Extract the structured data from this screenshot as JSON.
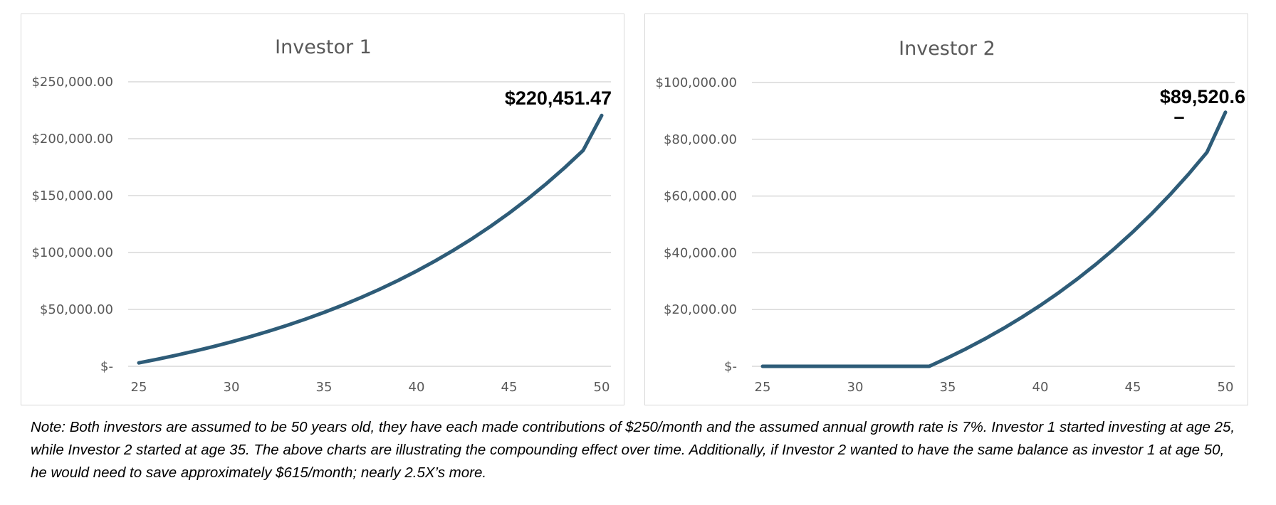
{
  "theme": {
    "line_color": "#2e5c78",
    "grid_color": "#d9d9d9",
    "text_color": "#595959",
    "border_color": "#d9d9d9"
  },
  "chart_data": [
    {
      "type": "line",
      "title": "Investor 1",
      "xlabel": "",
      "ylabel": "",
      "x": [
        25,
        26,
        27,
        28,
        29,
        30,
        31,
        32,
        33,
        34,
        35,
        36,
        37,
        38,
        39,
        40,
        41,
        42,
        43,
        44,
        45,
        46,
        47,
        48,
        49,
        50
      ],
      "series": [
        {
          "name": "Investor 1",
          "values": [
            3000,
            6210,
            9645,
            13320,
            17253,
            21461,
            25963,
            30781,
            35936,
            41452,
            47353,
            53668,
            60425,
            67655,
            75391,
            83668,
            92525,
            102002,
            112142,
            122992,
            134601,
            147023,
            160315,
            174537,
            189754,
            220451.47
          ]
        }
      ],
      "xticks": [
        25,
        30,
        35,
        40,
        45,
        50
      ],
      "xtick_labels": [
        "25",
        "30",
        "35",
        "40",
        "45",
        "50"
      ],
      "yticks": [
        0,
        50000,
        100000,
        150000,
        200000,
        250000
      ],
      "ytick_labels": [
        "$-",
        "$50,000.00",
        "$100,000.00",
        "$150,000.00",
        "$200,000.00",
        "$250,000.00"
      ],
      "xlim": [
        25,
        50
      ],
      "ylim": [
        0,
        250000
      ],
      "grid": true,
      "end_label": "$220,451.47",
      "end_label_suffix": ""
    },
    {
      "type": "line",
      "title": "Investor 2",
      "xlabel": "",
      "ylabel": "",
      "x": [
        25,
        26,
        27,
        28,
        29,
        30,
        31,
        32,
        33,
        34,
        35,
        36,
        37,
        38,
        39,
        40,
        41,
        42,
        43,
        44,
        45,
        46,
        47,
        48,
        49,
        50
      ],
      "series": [
        {
          "name": "Investor 2",
          "values": [
            0,
            0,
            0,
            0,
            0,
            0,
            0,
            0,
            0,
            0,
            3000,
            6210,
            9645,
            13320,
            17253,
            21461,
            25963,
            30781,
            35936,
            41452,
            47353,
            53668,
            60425,
            67655,
            75391,
            89520.6
          ]
        }
      ],
      "xticks": [
        25,
        30,
        35,
        40,
        45,
        50
      ],
      "xtick_labels": [
        "25",
        "30",
        "35",
        "40",
        "45",
        "50"
      ],
      "yticks": [
        0,
        20000,
        40000,
        60000,
        80000,
        100000
      ],
      "ytick_labels": [
        "$-",
        "$20,000.00",
        "$40,000.00",
        "$60,000.00",
        "$80,000.00",
        "$100,000.00"
      ],
      "xlim": [
        25,
        50
      ],
      "ylim": [
        0,
        100000
      ],
      "grid": true,
      "end_label": "$89,520.6",
      "end_label_suffix": "–"
    }
  ],
  "note": {
    "text": "Note: Both investors are assumed to be 50 years old, they have each made contributions of $250/month and the assumed annual growth rate is 7%.  Investor 1 started investing at age 25, while Investor 2 started at age 35.  The above charts are illustrating the compounding effect over time.  Additionally, if Investor 2 wanted to have the same balance as investor 1 at age 50, he would need to save approximately $615/month; nearly 2.5X’s more."
  }
}
